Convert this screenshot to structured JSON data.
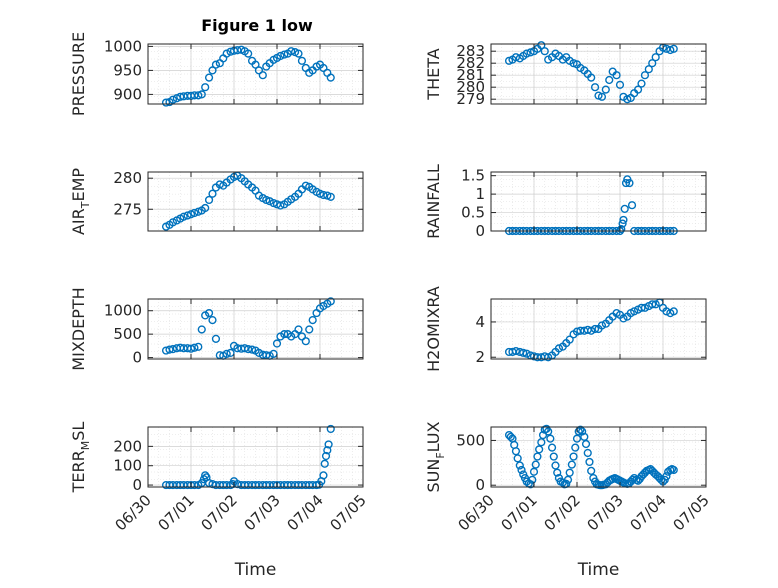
{
  "figure_title": "Figure 1 low",
  "marker_color": "#0072BD",
  "chart_data": [
    {
      "type": "scatter",
      "panel": "PRESSURE",
      "ylabel": "PRESSURE",
      "ylim": [
        880,
        1005
      ],
      "yticks": [
        900,
        950,
        1000
      ],
      "ytick_labels": [
        "900",
        "950",
        "1000"
      ],
      "xlim": [
        0,
        5
      ],
      "grid": true,
      "x": [
        0.42,
        0.5,
        0.58,
        0.67,
        0.75,
        0.83,
        0.92,
        1.0,
        1.08,
        1.17,
        1.25,
        1.33,
        1.42,
        1.5,
        1.58,
        1.67,
        1.75,
        1.83,
        1.92,
        2.0,
        2.08,
        2.17,
        2.25,
        2.33,
        2.42,
        2.5,
        2.58,
        2.67,
        2.75,
        2.83,
        2.92,
        3.0,
        3.08,
        3.17,
        3.25,
        3.33,
        3.42,
        3.5,
        3.58,
        3.67,
        3.75,
        3.83,
        3.92,
        4.0,
        4.08,
        4.17,
        4.25
      ],
      "y": [
        883,
        884,
        889,
        892,
        895,
        896,
        897,
        897,
        898,
        898,
        900,
        915,
        935,
        950,
        962,
        965,
        975,
        985,
        989,
        991,
        992,
        993,
        990,
        985,
        970,
        962,
        950,
        940,
        958,
        965,
        972,
        976,
        980,
        983,
        985,
        990,
        988,
        985,
        970,
        955,
        945,
        950,
        958,
        962,
        955,
        945,
        935
      ]
    },
    {
      "type": "scatter",
      "panel": "THETA",
      "ylabel": "THETA",
      "ylim": [
        278.6,
        283.6
      ],
      "yticks": [
        279,
        280,
        281,
        282,
        283
      ],
      "ytick_labels": [
        "279",
        "280",
        "281",
        "282",
        "283"
      ],
      "xlim": [
        0,
        5
      ],
      "grid": true,
      "x": [
        0.42,
        0.5,
        0.58,
        0.67,
        0.75,
        0.83,
        0.92,
        1.0,
        1.08,
        1.17,
        1.25,
        1.33,
        1.42,
        1.5,
        1.58,
        1.67,
        1.75,
        1.83,
        1.92,
        2.0,
        2.08,
        2.17,
        2.25,
        2.33,
        2.42,
        2.5,
        2.58,
        2.67,
        2.75,
        2.83,
        2.92,
        3.0,
        3.08,
        3.17,
        3.25,
        3.33,
        3.42,
        3.5,
        3.58,
        3.67,
        3.75,
        3.83,
        3.92,
        4.0,
        4.08,
        4.17,
        4.25
      ],
      "y": [
        282.2,
        282.3,
        282.5,
        282.4,
        282.6,
        282.8,
        282.9,
        283.0,
        283.2,
        283.5,
        283.0,
        282.3,
        282.5,
        282.8,
        282.6,
        282.3,
        282.5,
        282.2,
        282.0,
        281.9,
        281.6,
        281.4,
        281.1,
        280.8,
        280.0,
        279.3,
        279.2,
        279.8,
        280.6,
        281.3,
        281.0,
        280.2,
        279.2,
        279.0,
        279.1,
        279.5,
        279.8,
        280.3,
        281.0,
        281.5,
        282.0,
        282.5,
        283.0,
        283.3,
        283.2,
        283.1,
        283.2
      ]
    },
    {
      "type": "scatter",
      "panel": "AIR_TEMP",
      "ylabel": "AIR",
      "ylabel_sub": "T",
      "ylabel_rest": "EMP",
      "ylim": [
        271.5,
        281
      ],
      "yticks": [
        275,
        280
      ],
      "ytick_labels": [
        "275",
        "280"
      ],
      "xlim": [
        0,
        5
      ],
      "grid": true,
      "x": [
        0.42,
        0.5,
        0.58,
        0.67,
        0.75,
        0.83,
        0.92,
        1.0,
        1.08,
        1.17,
        1.25,
        1.33,
        1.42,
        1.5,
        1.58,
        1.67,
        1.75,
        1.83,
        1.92,
        2.0,
        2.08,
        2.17,
        2.25,
        2.33,
        2.42,
        2.5,
        2.58,
        2.67,
        2.75,
        2.83,
        2.92,
        3.0,
        3.08,
        3.17,
        3.25,
        3.33,
        3.42,
        3.5,
        3.58,
        3.67,
        3.75,
        3.83,
        3.92,
        4.0,
        4.08,
        4.17,
        4.25
      ],
      "y": [
        272.2,
        272.5,
        272.9,
        273.2,
        273.5,
        273.8,
        274.0,
        274.2,
        274.4,
        274.6,
        274.8,
        275.2,
        276.5,
        277.5,
        278.5,
        279.0,
        278.8,
        279.3,
        279.8,
        280.2,
        280.4,
        280.0,
        279.5,
        279.0,
        278.5,
        278.0,
        277.2,
        276.8,
        276.5,
        276.3,
        276.0,
        275.8,
        275.6,
        275.8,
        276.2,
        276.6,
        277.0,
        277.5,
        278.2,
        278.8,
        278.6,
        278.2,
        277.8,
        277.5,
        277.3,
        277.2,
        277.0
      ]
    },
    {
      "type": "scatter",
      "panel": "RAINFALL",
      "ylabel": "RAINFALL",
      "ylim": [
        0,
        1.6
      ],
      "yticks": [
        0,
        0.5,
        1,
        1.5
      ],
      "ytick_labels": [
        "0",
        "0.5",
        "1",
        "1.5"
      ],
      "xlim": [
        0,
        5
      ],
      "grid": true,
      "x": [
        0.42,
        0.5,
        0.58,
        0.67,
        0.75,
        0.83,
        0.92,
        1.0,
        1.08,
        1.17,
        1.25,
        1.33,
        1.42,
        1.5,
        1.58,
        1.67,
        1.75,
        1.83,
        1.92,
        2.0,
        2.08,
        2.17,
        2.25,
        2.33,
        2.42,
        2.5,
        2.58,
        2.67,
        2.75,
        2.83,
        2.92,
        3.0,
        3.03,
        3.06,
        3.08,
        3.11,
        3.14,
        3.17,
        3.22,
        3.28,
        3.33,
        3.42,
        3.5,
        3.58,
        3.67,
        3.75,
        3.83,
        3.92,
        4.0,
        4.08,
        4.17,
        4.25
      ],
      "y": [
        0,
        0,
        0,
        0,
        0,
        0,
        0,
        0,
        0,
        0,
        0,
        0,
        0,
        0,
        0,
        0,
        0,
        0,
        0,
        0,
        0,
        0,
        0,
        0,
        0,
        0,
        0,
        0,
        0,
        0,
        0,
        0,
        0.05,
        0.2,
        0.3,
        0.6,
        1.3,
        1.4,
        1.3,
        0.7,
        0,
        0,
        0,
        0,
        0,
        0,
        0,
        0,
        0,
        0,
        0,
        0
      ]
    },
    {
      "type": "scatter",
      "panel": "MIXDEPTH",
      "ylabel": "MIXDEPTH",
      "ylim": [
        -30,
        1250
      ],
      "yticks": [
        0,
        500,
        1000
      ],
      "ytick_labels": [
        "0",
        "500",
        "1000"
      ],
      "xlim": [
        0,
        5
      ],
      "grid": true,
      "x": [
        0.42,
        0.5,
        0.58,
        0.67,
        0.75,
        0.83,
        0.92,
        1.0,
        1.08,
        1.17,
        1.25,
        1.33,
        1.42,
        1.5,
        1.58,
        1.67,
        1.75,
        1.83,
        1.92,
        2.0,
        2.08,
        2.17,
        2.25,
        2.33,
        2.42,
        2.5,
        2.58,
        2.67,
        2.75,
        2.83,
        2.92,
        3.0,
        3.08,
        3.17,
        3.25,
        3.33,
        3.42,
        3.5,
        3.58,
        3.67,
        3.75,
        3.83,
        3.92,
        4.0,
        4.08,
        4.17,
        4.25
      ],
      "y": [
        150,
        170,
        180,
        200,
        210,
        200,
        200,
        190,
        210,
        230,
        600,
        900,
        950,
        800,
        400,
        50,
        40,
        80,
        100,
        250,
        200,
        190,
        200,
        180,
        170,
        150,
        100,
        60,
        50,
        40,
        80,
        300,
        450,
        500,
        500,
        450,
        500,
        600,
        450,
        350,
        600,
        800,
        950,
        1050,
        1100,
        1150,
        1200
      ]
    },
    {
      "type": "scatter",
      "panel": "H2OMIXRA",
      "ylabel": "H2OMIXRA",
      "ylim": [
        1.9,
        5.3
      ],
      "yticks": [
        2,
        4
      ],
      "ytick_labels": [
        "2",
        "4"
      ],
      "xlim": [
        0,
        5
      ],
      "grid": true,
      "x": [
        0.42,
        0.5,
        0.58,
        0.67,
        0.75,
        0.83,
        0.92,
        1.0,
        1.08,
        1.17,
        1.25,
        1.33,
        1.42,
        1.5,
        1.58,
        1.67,
        1.75,
        1.83,
        1.92,
        2.0,
        2.08,
        2.17,
        2.25,
        2.33,
        2.42,
        2.5,
        2.58,
        2.67,
        2.75,
        2.83,
        2.92,
        3.0,
        3.08,
        3.17,
        3.25,
        3.33,
        3.42,
        3.5,
        3.58,
        3.67,
        3.75,
        3.83,
        3.92,
        4.0,
        4.08,
        4.17,
        4.25
      ],
      "y": [
        2.3,
        2.3,
        2.35,
        2.3,
        2.25,
        2.2,
        2.1,
        2.05,
        2.0,
        2.0,
        2.05,
        2.0,
        2.1,
        2.3,
        2.5,
        2.6,
        2.8,
        3.0,
        3.3,
        3.45,
        3.5,
        3.5,
        3.55,
        3.5,
        3.6,
        3.6,
        3.8,
        3.9,
        4.1,
        4.3,
        4.5,
        4.4,
        4.2,
        4.3,
        4.5,
        4.6,
        4.7,
        4.8,
        4.8,
        4.9,
        5.0,
        5.0,
        5.1,
        4.8,
        4.6,
        4.5,
        4.6
      ]
    },
    {
      "type": "scatter",
      "panel": "TERR_MSL",
      "ylabel": "TERR",
      "ylabel_sub": "M",
      "ylabel_rest": "SL",
      "ylim": [
        -10,
        300
      ],
      "yticks": [
        0,
        100,
        200
      ],
      "ytick_labels": [
        "0",
        "100",
        "200"
      ],
      "xlim": [
        0,
        5
      ],
      "grid": true,
      "x": [
        0.42,
        0.5,
        0.58,
        0.67,
        0.75,
        0.83,
        0.92,
        1.0,
        1.08,
        1.17,
        1.25,
        1.3,
        1.33,
        1.36,
        1.42,
        1.5,
        1.58,
        1.67,
        1.75,
        1.83,
        1.92,
        1.97,
        2.0,
        2.08,
        2.17,
        2.25,
        2.33,
        2.42,
        2.5,
        2.58,
        2.67,
        2.75,
        2.83,
        2.92,
        3.0,
        3.08,
        3.17,
        3.25,
        3.33,
        3.42,
        3.5,
        3.58,
        3.67,
        3.75,
        3.83,
        3.92,
        3.98,
        4.03,
        4.08,
        4.11,
        4.14,
        4.17,
        4.2,
        4.25
      ],
      "y": [
        0,
        0,
        0,
        0,
        0,
        0,
        0,
        0,
        0,
        0,
        10,
        30,
        50,
        40,
        10,
        5,
        0,
        0,
        0,
        0,
        0,
        5,
        20,
        5,
        0,
        0,
        0,
        0,
        0,
        0,
        0,
        0,
        0,
        0,
        0,
        0,
        0,
        0,
        0,
        0,
        0,
        0,
        0,
        0,
        0,
        0,
        2,
        20,
        50,
        110,
        150,
        180,
        210,
        290
      ]
    },
    {
      "type": "scatter",
      "panel": "SUN_FLUX",
      "ylabel": "SUN",
      "ylabel_sub": "F",
      "ylabel_rest": "LUX",
      "ylim": [
        -20,
        650
      ],
      "yticks": [
        0,
        500
      ],
      "ytick_labels": [
        "0",
        "500"
      ],
      "xlim": [
        0,
        5
      ],
      "grid": true,
      "x": [
        0.42,
        0.46,
        0.5,
        0.54,
        0.58,
        0.62,
        0.67,
        0.71,
        0.75,
        0.79,
        0.83,
        0.88,
        0.92,
        0.96,
        1.0,
        1.04,
        1.08,
        1.12,
        1.17,
        1.21,
        1.25,
        1.29,
        1.33,
        1.38,
        1.42,
        1.46,
        1.5,
        1.54,
        1.58,
        1.62,
        1.67,
        1.71,
        1.75,
        1.79,
        1.83,
        1.88,
        1.92,
        1.96,
        2.0,
        2.04,
        2.08,
        2.12,
        2.17,
        2.21,
        2.25,
        2.29,
        2.33,
        2.38,
        2.42,
        2.46,
        2.5,
        2.54,
        2.58,
        2.62,
        2.67,
        2.71,
        2.75,
        2.79,
        2.83,
        2.88,
        2.92,
        2.96,
        3.0,
        3.04,
        3.08,
        3.12,
        3.17,
        3.21,
        3.25,
        3.29,
        3.33,
        3.38,
        3.42,
        3.46,
        3.5,
        3.54,
        3.58,
        3.62,
        3.67,
        3.71,
        3.75,
        3.79,
        3.83,
        3.88,
        3.92,
        3.96,
        4.0,
        4.04,
        4.08,
        4.12,
        4.17,
        4.21,
        4.25
      ],
      "y": [
        560,
        540,
        520,
        450,
        380,
        300,
        220,
        170,
        120,
        80,
        40,
        20,
        10,
        60,
        150,
        230,
        320,
        400,
        480,
        560,
        620,
        630,
        600,
        520,
        420,
        320,
        220,
        140,
        80,
        40,
        30,
        10,
        15,
        60,
        140,
        230,
        320,
        420,
        520,
        600,
        620,
        600,
        540,
        460,
        360,
        260,
        160,
        80,
        40,
        10,
        5,
        0,
        0,
        5,
        10,
        30,
        50,
        60,
        70,
        80,
        70,
        60,
        50,
        40,
        30,
        20,
        15,
        20,
        40,
        60,
        80,
        60,
        50,
        70,
        100,
        120,
        140,
        160,
        170,
        180,
        160,
        140,
        120,
        100,
        80,
        60,
        40,
        60,
        100,
        150,
        170,
        180,
        170
      ]
    }
  ],
  "x_ticks": [
    0,
    1,
    2,
    3,
    4,
    5
  ],
  "x_tick_labels": [
    "06/30",
    "07/01",
    "07/02",
    "07/03",
    "07/04",
    "07/05"
  ],
  "xlabel": "Time"
}
